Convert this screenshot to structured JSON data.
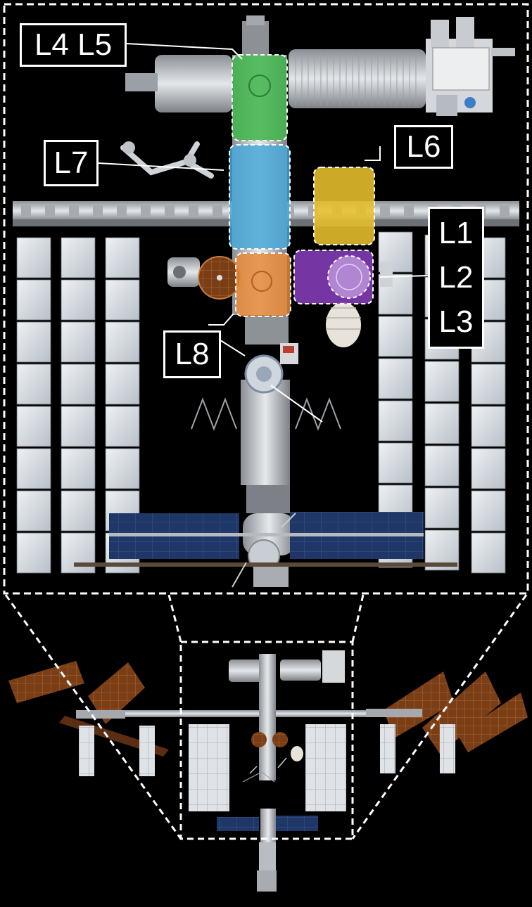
{
  "labels": {
    "l4_l5": "L4 L5",
    "l6": "L6",
    "l7": "L7",
    "l8": "L8",
    "l1": "L1",
    "l2": "L2",
    "l3": "L3"
  },
  "colors": {
    "background": "#000000",
    "frame": "#ffffff",
    "highlight_green": "#3fb54a",
    "highlight_blue": "#4aa8d8",
    "highlight_yellow": "#e8c02c",
    "highlight_orange": "#e8893a",
    "highlight_purple": "#8a3fc0",
    "solar_wing_blue": "#1d3a6e",
    "solar_wing_copper": "#8a4a20",
    "radiator": "#d8dde2",
    "module_metal": "#c9ccd0"
  }
}
